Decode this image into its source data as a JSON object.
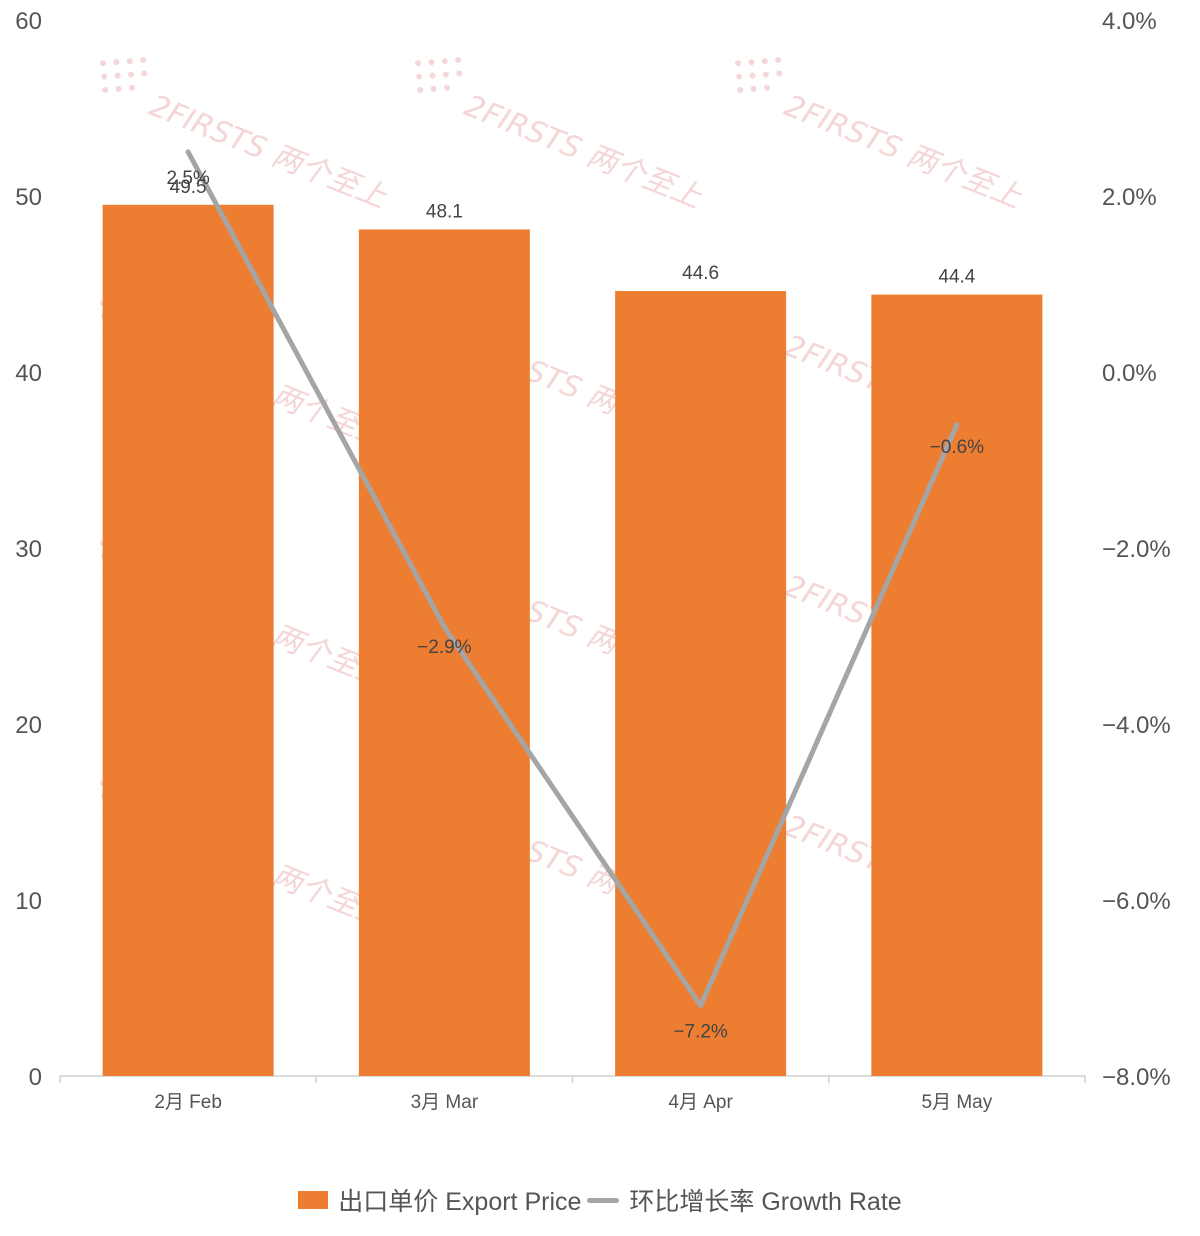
{
  "chart_data": {
    "type": "bar",
    "categories": [
      "2月 Feb",
      "3月 Mar",
      "4月 Apr",
      "5月 May"
    ],
    "series": [
      {
        "name": "出口单价 Export Price",
        "chart_type": "bar",
        "axis": "left",
        "values": [
          49.5,
          48.1,
          44.6,
          44.4
        ],
        "labels": [
          "49.5",
          "48.1",
          "44.6",
          "44.4"
        ],
        "color": "#ed7d31"
      },
      {
        "name": "环比增长率 Growth Rate",
        "chart_type": "line",
        "axis": "right",
        "values": [
          2.5,
          -2.9,
          -7.2,
          -0.6
        ],
        "labels": [
          "2.5%",
          "−2.9%",
          "−7.2%",
          "−0.6%"
        ],
        "color": "#a5a5a5"
      }
    ],
    "y_left": {
      "ylim": [
        0,
        60
      ],
      "ticks": [
        "0",
        "10",
        "20",
        "30",
        "40",
        "50",
        "60"
      ]
    },
    "y_right": {
      "ylim": [
        -8.0,
        4.0
      ],
      "ticks": [
        "−8.0%",
        "−6.0%",
        "−4.0%",
        "−2.0%",
        "0.0%",
        "2.0%",
        "4.0%"
      ]
    },
    "grid": false,
    "legend_position": "bottom"
  },
  "watermark": {
    "text": "2FIRSTS 两个至上",
    "color": "#f2c9c9"
  }
}
